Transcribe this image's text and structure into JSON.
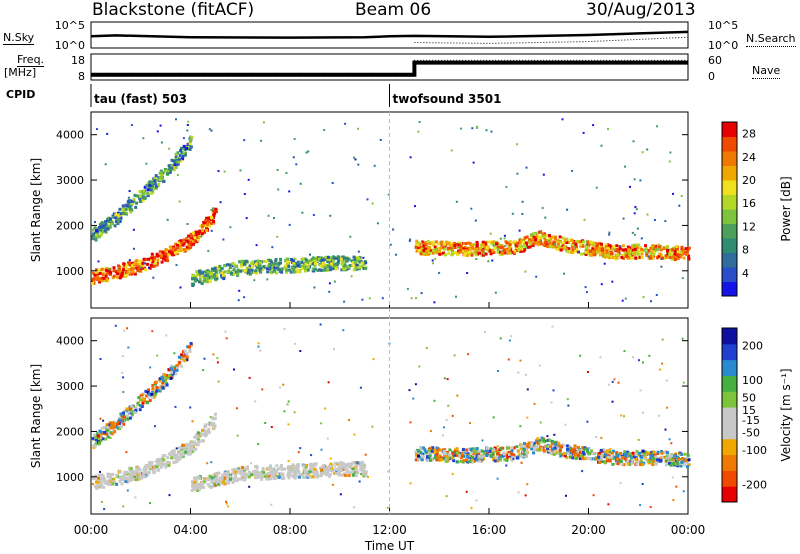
{
  "header": {
    "site": "Blackstone (fitACF)",
    "beam": "Beam 06",
    "date": "30/Aug/2013"
  },
  "side_labels": {
    "nsky": "N.Sky",
    "nsearch": "N.Search",
    "freq": "Freq.",
    "freq_unit": "[MHz]",
    "nave": "Nave",
    "cpid": "CPID"
  },
  "colors": {
    "power": [
      "#1414e6",
      "#2a4ec8",
      "#2f6e9c",
      "#2f8c72",
      "#4ca05a",
      "#7cc43c",
      "#b4d828",
      "#f0e020",
      "#f0a800",
      "#f07a00",
      "#f04a00",
      "#e60000"
    ],
    "velocity": [
      "#e60000",
      "#f04a00",
      "#f07a00",
      "#f0a800",
      "#c8c8c8",
      "#c8c8c8",
      "#7cc43c",
      "#44b040",
      "#2a8ad0",
      "#2040d0",
      "#1010a0"
    ]
  },
  "chart_data": [
    {
      "type": "line",
      "panel": "noise",
      "yticks_left": [
        "10^5",
        "10^0"
      ],
      "yticks_right": [
        "10^5",
        "10^0"
      ],
      "series": [
        {
          "name": "N.Sky",
          "x_hours": [
            0,
            1,
            4,
            8,
            11,
            12,
            13,
            16,
            20,
            24
          ],
          "log10_values": [
            2.2,
            2.4,
            2.0,
            1.9,
            2.0,
            2.2,
            2.3,
            2.1,
            2.5,
            3.2
          ]
        },
        {
          "name": "N.Search",
          "x_hours": [
            13,
            16,
            20,
            24
          ],
          "log10_values": [
            0.8,
            0.6,
            1.0,
            2.0
          ]
        }
      ]
    },
    {
      "type": "line",
      "panel": "frequency",
      "yticks_left": [
        "18",
        "8"
      ],
      "yticks_right": [
        "60",
        "0"
      ],
      "series": [
        {
          "name": "Freq.",
          "unit": "MHz",
          "x_hours": [
            0,
            13,
            13,
            24
          ],
          "values": [
            9.5,
            9.5,
            15,
            15
          ]
        },
        {
          "name": "Nave",
          "x_hours": [
            0,
            13,
            13,
            24
          ],
          "values": [
            5,
            5,
            48,
            48
          ]
        }
      ]
    },
    {
      "type": "table",
      "panel": "cpid",
      "segments": [
        {
          "start_hour": 0,
          "label": "tau (fast) 503"
        },
        {
          "start_hour": 12.0,
          "label": "twofsound 3501"
        }
      ]
    },
    {
      "type": "heatmap",
      "panel": "power",
      "ylabel": "Slant Range [km]",
      "yticks": [
        "1000",
        "2000",
        "3000",
        "4000"
      ],
      "ylim": [
        180,
        4500
      ],
      "xlim": [
        0,
        24
      ],
      "colorbar": {
        "label": "Power [dB]",
        "ticks": [
          "4",
          "8",
          "12",
          "16",
          "20",
          "24",
          "28"
        ],
        "range": [
          0,
          30
        ]
      },
      "echo_bands": [
        {
          "desc": "ground scatter arc",
          "x_hours": [
            0,
            1,
            2,
            3,
            4,
            5
          ],
          "range_km": [
            900,
            1000,
            1150,
            1400,
            1700,
            2300
          ],
          "power_db": 26
        },
        {
          "desc": "flat band",
          "x_hours": [
            4,
            6,
            8,
            10,
            11
          ],
          "range_km": [
            850,
            1100,
            1150,
            1200,
            1200
          ],
          "power_db": 12
        },
        {
          "desc": "afternoon band",
          "x_hours": [
            13,
            15,
            17,
            18,
            19,
            21,
            23,
            24
          ],
          "range_km": [
            1550,
            1500,
            1550,
            1750,
            1600,
            1450,
            1450,
            1400
          ],
          "power_db": 22
        },
        {
          "desc": "high arc",
          "x_hours": [
            0,
            1,
            2,
            3,
            4
          ],
          "range_km": [
            1800,
            2200,
            2700,
            3200,
            3900
          ],
          "power_db": 10
        }
      ]
    },
    {
      "type": "heatmap",
      "panel": "velocity",
      "ylabel": "Slant Range [km]",
      "yticks": [
        "1000",
        "2000",
        "3000",
        "4000"
      ],
      "ylim": [
        180,
        4500
      ],
      "xlabel": "Time UT",
      "xticks": [
        "00:00",
        "04:00",
        "08:00",
        "12:00",
        "16:00",
        "20:00",
        "00:00"
      ],
      "xlim": [
        0,
        24
      ],
      "colorbar": {
        "label": "Velocity [m s⁻¹]",
        "ticks": [
          "200",
          "100",
          "50",
          "15",
          "-15",
          "-50",
          "-100",
          "-200"
        ],
        "range": [
          -250,
          250
        ]
      }
    }
  ]
}
